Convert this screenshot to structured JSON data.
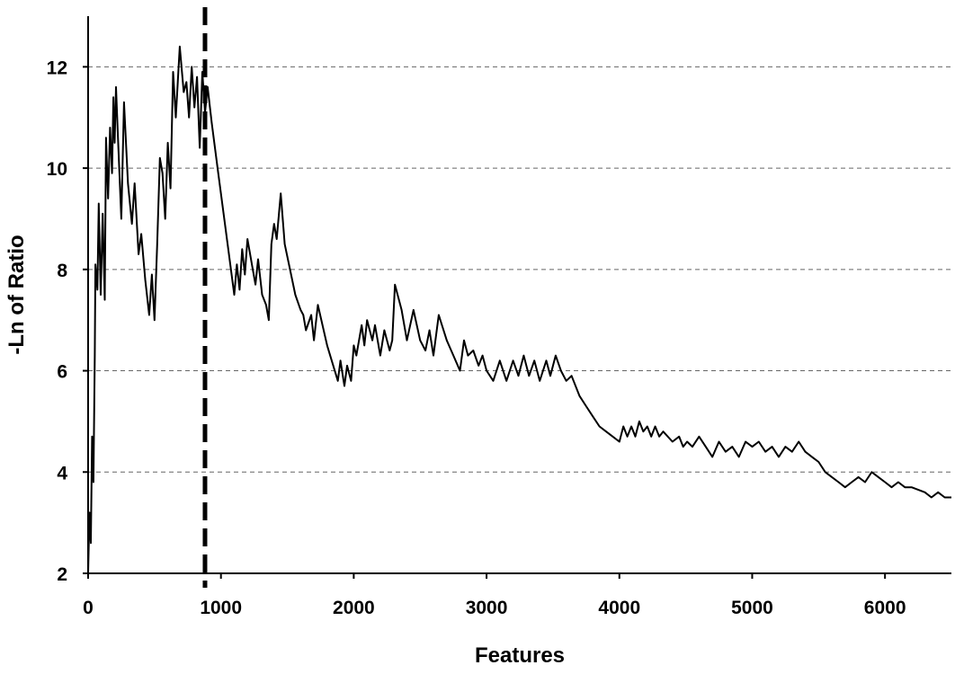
{
  "chart_data": {
    "type": "line",
    "title": "",
    "xlabel": "Features",
    "ylabel": "-Ln of Ratio",
    "xlim": [
      0,
      6500
    ],
    "ylim": [
      2,
      13
    ],
    "x_ticks": [
      0,
      1000,
      2000,
      3000,
      4000,
      5000,
      6000
    ],
    "x_tick_labels": [
      "0",
      "1000",
      "2000",
      "3000",
      "4000",
      "5000",
      "6000"
    ],
    "y_ticks": [
      2,
      4,
      6,
      8,
      10,
      12
    ],
    "y_tick_labels": [
      "2",
      "4",
      "6",
      "8",
      "10",
      "12"
    ],
    "grid": "horizontal dashed",
    "legend": "none",
    "colors": {
      "line": "#000000",
      "grid": "#666666",
      "marker": "#000000"
    },
    "vertical_marker": {
      "x": 880,
      "style": "dashed"
    },
    "series": [
      {
        "values": [
          [
            0,
            2.0
          ],
          [
            10,
            3.2
          ],
          [
            20,
            2.6
          ],
          [
            30,
            4.7
          ],
          [
            40,
            3.8
          ],
          [
            50,
            6.3
          ],
          [
            55,
            8.1
          ],
          [
            70,
            7.6
          ],
          [
            80,
            9.3
          ],
          [
            95,
            7.5
          ],
          [
            110,
            9.1
          ],
          [
            125,
            7.4
          ],
          [
            135,
            10.6
          ],
          [
            150,
            9.4
          ],
          [
            165,
            10.8
          ],
          [
            180,
            9.9
          ],
          [
            190,
            11.4
          ],
          [
            200,
            10.5
          ],
          [
            210,
            11.6
          ],
          [
            225,
            10.6
          ],
          [
            250,
            9.0
          ],
          [
            270,
            11.3
          ],
          [
            300,
            9.7
          ],
          [
            330,
            8.9
          ],
          [
            350,
            9.7
          ],
          [
            380,
            8.3
          ],
          [
            400,
            8.7
          ],
          [
            430,
            7.8
          ],
          [
            460,
            7.1
          ],
          [
            480,
            7.9
          ],
          [
            500,
            7.0
          ],
          [
            520,
            8.5
          ],
          [
            540,
            10.2
          ],
          [
            560,
            9.9
          ],
          [
            580,
            9.0
          ],
          [
            600,
            10.5
          ],
          [
            620,
            9.6
          ],
          [
            640,
            11.9
          ],
          [
            660,
            11.0
          ],
          [
            690,
            12.4
          ],
          [
            720,
            11.5
          ],
          [
            740,
            11.7
          ],
          [
            760,
            11.0
          ],
          [
            780,
            12.0
          ],
          [
            800,
            11.2
          ],
          [
            820,
            11.8
          ],
          [
            840,
            10.4
          ],
          [
            860,
            11.9
          ],
          [
            880,
            11.1
          ],
          [
            900,
            11.6
          ],
          [
            930,
            10.9
          ],
          [
            980,
            9.9
          ],
          [
            1050,
            8.5
          ],
          [
            1100,
            7.5
          ],
          [
            1120,
            8.1
          ],
          [
            1140,
            7.6
          ],
          [
            1160,
            8.4
          ],
          [
            1180,
            7.9
          ],
          [
            1200,
            8.6
          ],
          [
            1240,
            8.0
          ],
          [
            1260,
            7.7
          ],
          [
            1280,
            8.2
          ],
          [
            1310,
            7.5
          ],
          [
            1340,
            7.3
          ],
          [
            1360,
            7.0
          ],
          [
            1380,
            8.5
          ],
          [
            1400,
            8.9
          ],
          [
            1420,
            8.6
          ],
          [
            1450,
            9.5
          ],
          [
            1480,
            8.5
          ],
          [
            1560,
            7.5
          ],
          [
            1600,
            7.2
          ],
          [
            1620,
            7.1
          ],
          [
            1640,
            6.8
          ],
          [
            1680,
            7.1
          ],
          [
            1700,
            6.6
          ],
          [
            1730,
            7.3
          ],
          [
            1800,
            6.5
          ],
          [
            1880,
            5.8
          ],
          [
            1900,
            6.2
          ],
          [
            1930,
            5.7
          ],
          [
            1950,
            6.1
          ],
          [
            1980,
            5.8
          ],
          [
            2000,
            6.5
          ],
          [
            2020,
            6.3
          ],
          [
            2060,
            6.9
          ],
          [
            2080,
            6.5
          ],
          [
            2100,
            7.0
          ],
          [
            2140,
            6.6
          ],
          [
            2160,
            6.9
          ],
          [
            2200,
            6.3
          ],
          [
            2230,
            6.8
          ],
          [
            2270,
            6.4
          ],
          [
            2290,
            6.6
          ],
          [
            2310,
            7.7
          ],
          [
            2360,
            7.2
          ],
          [
            2400,
            6.6
          ],
          [
            2450,
            7.2
          ],
          [
            2500,
            6.6
          ],
          [
            2540,
            6.4
          ],
          [
            2570,
            6.8
          ],
          [
            2600,
            6.3
          ],
          [
            2640,
            7.1
          ],
          [
            2700,
            6.6
          ],
          [
            2750,
            6.3
          ],
          [
            2800,
            6.0
          ],
          [
            2830,
            6.6
          ],
          [
            2860,
            6.3
          ],
          [
            2900,
            6.4
          ],
          [
            2940,
            6.1
          ],
          [
            2970,
            6.3
          ],
          [
            3000,
            6.0
          ],
          [
            3050,
            5.8
          ],
          [
            3100,
            6.2
          ],
          [
            3150,
            5.8
          ],
          [
            3200,
            6.2
          ],
          [
            3240,
            5.9
          ],
          [
            3280,
            6.3
          ],
          [
            3320,
            5.9
          ],
          [
            3360,
            6.2
          ],
          [
            3400,
            5.8
          ],
          [
            3450,
            6.2
          ],
          [
            3480,
            5.9
          ],
          [
            3520,
            6.3
          ],
          [
            3560,
            6.0
          ],
          [
            3600,
            5.8
          ],
          [
            3640,
            5.9
          ],
          [
            3700,
            5.5
          ],
          [
            3750,
            5.3
          ],
          [
            3800,
            5.1
          ],
          [
            3850,
            4.9
          ],
          [
            3900,
            4.8
          ],
          [
            3950,
            4.7
          ],
          [
            4000,
            4.6
          ],
          [
            4030,
            4.9
          ],
          [
            4060,
            4.7
          ],
          [
            4090,
            4.9
          ],
          [
            4120,
            4.7
          ],
          [
            4150,
            5.0
          ],
          [
            4180,
            4.8
          ],
          [
            4210,
            4.9
          ],
          [
            4240,
            4.7
          ],
          [
            4270,
            4.9
          ],
          [
            4300,
            4.7
          ],
          [
            4330,
            4.8
          ],
          [
            4400,
            4.6
          ],
          [
            4450,
            4.7
          ],
          [
            4480,
            4.5
          ],
          [
            4510,
            4.6
          ],
          [
            4550,
            4.5
          ],
          [
            4600,
            4.7
          ],
          [
            4650,
            4.5
          ],
          [
            4700,
            4.3
          ],
          [
            4750,
            4.6
          ],
          [
            4800,
            4.4
          ],
          [
            4850,
            4.5
          ],
          [
            4900,
            4.3
          ],
          [
            4950,
            4.6
          ],
          [
            5000,
            4.5
          ],
          [
            5050,
            4.6
          ],
          [
            5100,
            4.4
          ],
          [
            5150,
            4.5
          ],
          [
            5200,
            4.3
          ],
          [
            5250,
            4.5
          ],
          [
            5300,
            4.4
          ],
          [
            5350,
            4.6
          ],
          [
            5400,
            4.4
          ],
          [
            5450,
            4.3
          ],
          [
            5500,
            4.2
          ],
          [
            5550,
            4.0
          ],
          [
            5600,
            3.9
          ],
          [
            5650,
            3.8
          ],
          [
            5700,
            3.7
          ],
          [
            5750,
            3.8
          ],
          [
            5800,
            3.9
          ],
          [
            5850,
            3.8
          ],
          [
            5900,
            4.0
          ],
          [
            5950,
            3.9
          ],
          [
            6000,
            3.8
          ],
          [
            6050,
            3.7
          ],
          [
            6100,
            3.8
          ],
          [
            6150,
            3.7
          ],
          [
            6200,
            3.7
          ],
          [
            6300,
            3.6
          ],
          [
            6350,
            3.5
          ],
          [
            6400,
            3.6
          ],
          [
            6450,
            3.5
          ],
          [
            6500,
            3.5
          ]
        ]
      }
    ]
  }
}
